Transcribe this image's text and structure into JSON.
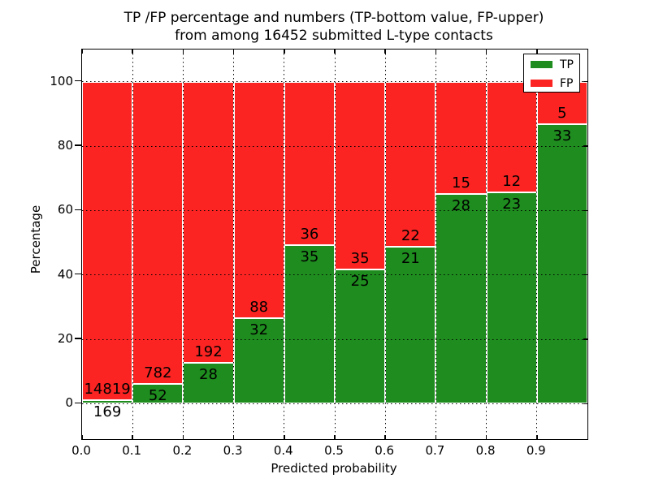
{
  "chart_data": {
    "type": "bar",
    "stacked": true,
    "unit": "percent",
    "title_line1": "TP /FP percentage and numbers (TP-bottom value, FP-upper)",
    "title_line2": "from among 16452 submitted L-type contacts",
    "xlabel": "Predicted probability",
    "ylabel": "Percentage",
    "total_contacts": 16452,
    "categories": [
      "0.0-0.1",
      "0.1-0.2",
      "0.2-0.3",
      "0.3-0.4",
      "0.4-0.5",
      "0.5-0.6",
      "0.6-0.7",
      "0.7-0.8",
      "0.8-0.9",
      "0.9-1.0"
    ],
    "series": [
      {
        "name": "TP",
        "color": "#1e8c1e",
        "values": [
          169,
          52,
          28,
          32,
          35,
          25,
          21,
          28,
          23,
          33
        ]
      },
      {
        "name": "FP",
        "color": "#fb2422",
        "values": [
          14819,
          782,
          192,
          88,
          36,
          35,
          22,
          15,
          12,
          5
        ]
      }
    ],
    "xlim": [
      0.0,
      1.0
    ],
    "ylim": [
      -11,
      110
    ],
    "xticks": [
      "0.0",
      "0.1",
      "0.2",
      "0.3",
      "0.4",
      "0.5",
      "0.6",
      "0.7",
      "0.8",
      "0.9"
    ],
    "xtick_values": [
      0.0,
      0.1,
      0.2,
      0.3,
      0.4,
      0.5,
      0.6,
      0.7,
      0.8,
      0.9
    ],
    "yticks": [
      "0",
      "20",
      "40",
      "60",
      "80",
      "100"
    ],
    "ytick_values": [
      0,
      20,
      40,
      60,
      80,
      100
    ],
    "grid": true,
    "legend": {
      "position": "upper right",
      "entries": [
        {
          "label": "TP",
          "color": "#1e8c1e"
        },
        {
          "label": "FP",
          "color": "#fb2422"
        }
      ]
    }
  }
}
